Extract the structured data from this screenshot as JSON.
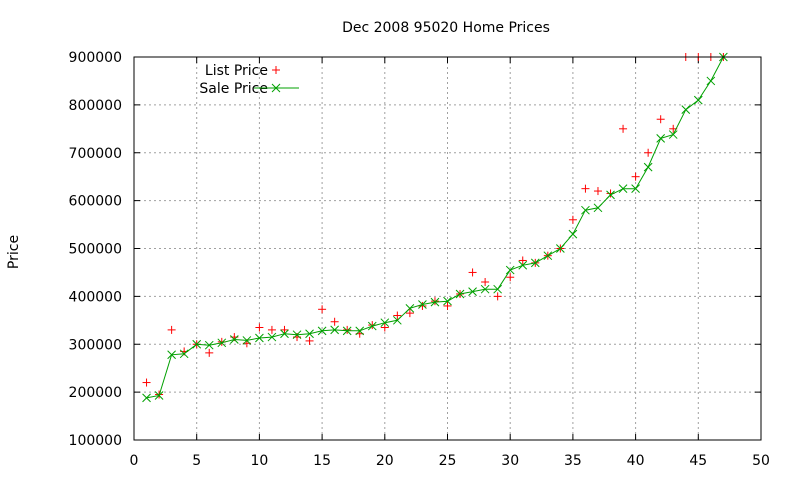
{
  "chart_data": {
    "type": "line",
    "title": "Dec 2008 95020 Home Prices",
    "xlabel": "",
    "ylabel": "Price",
    "xlim": [
      0,
      50
    ],
    "ylim": [
      100000,
      900000
    ],
    "xticks": [
      "0",
      "5",
      "10",
      "15",
      "20",
      "25",
      "30",
      "35",
      "40",
      "45",
      "50"
    ],
    "yticks": [
      "100000",
      "200000",
      "300000",
      "400000",
      "500000",
      "600000",
      "700000",
      "800000",
      "900000"
    ],
    "grid": true,
    "legend_position": "top-left",
    "series": [
      {
        "name": "List Price",
        "style": "points",
        "marker": "+",
        "color": "#ff0000",
        "x": [
          1,
          2,
          3,
          4,
          5,
          6,
          7,
          8,
          9,
          10,
          11,
          12,
          13,
          14,
          15,
          16,
          17,
          18,
          19,
          20,
          21,
          22,
          23,
          24,
          25,
          26,
          27,
          28,
          29,
          30,
          31,
          32,
          33,
          34,
          35,
          36,
          37,
          38,
          39,
          40,
          41,
          42,
          43,
          44,
          45,
          46,
          47
        ],
        "y": [
          220000,
          195000,
          330000,
          285000,
          300000,
          282000,
          305000,
          315000,
          302000,
          335000,
          330000,
          330000,
          315000,
          307000,
          373000,
          347000,
          330000,
          322000,
          340000,
          335000,
          360000,
          365000,
          380000,
          390000,
          380000,
          405000,
          450000,
          430000,
          400000,
          440000,
          475000,
          470000,
          485000,
          500000,
          560000,
          625000,
          620000,
          615000,
          750000,
          650000,
          700000,
          770000,
          750000,
          900000,
          900000,
          900000,
          900000
        ]
      },
      {
        "name": "Sale Price",
        "style": "linespoints",
        "marker": "x",
        "color": "#00a000",
        "x": [
          1,
          2,
          3,
          4,
          5,
          6,
          7,
          8,
          9,
          10,
          11,
          12,
          13,
          14,
          15,
          16,
          17,
          18,
          19,
          20,
          21,
          22,
          23,
          24,
          25,
          26,
          27,
          28,
          29,
          30,
          31,
          32,
          33,
          34,
          35,
          36,
          37,
          38,
          39,
          40,
          41,
          42,
          43,
          44,
          45,
          46,
          47
        ],
        "y": [
          188000,
          193000,
          278000,
          280000,
          300000,
          298000,
          303000,
          310000,
          308000,
          313000,
          315000,
          322000,
          320000,
          322000,
          328000,
          330000,
          328000,
          328000,
          338000,
          345000,
          350000,
          375000,
          383000,
          388000,
          390000,
          405000,
          410000,
          415000,
          415000,
          455000,
          465000,
          470000,
          485000,
          500000,
          530000,
          580000,
          585000,
          612000,
          625000,
          625000,
          670000,
          730000,
          738000,
          790000,
          810000,
          850000,
          900000
        ]
      }
    ]
  }
}
